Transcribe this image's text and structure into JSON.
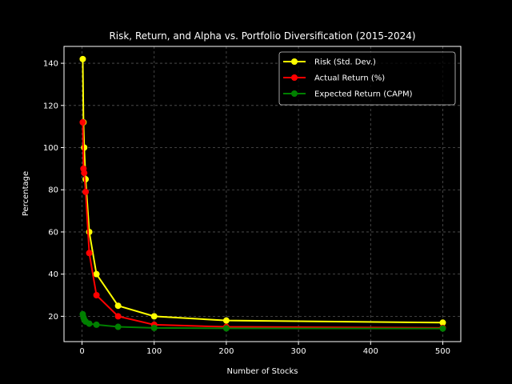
{
  "chart_data": {
    "type": "line",
    "title": "Risk, Return, and Alpha vs. Portfolio Diversification (2015-2024)",
    "xlabel": "Number of Stocks",
    "ylabel": "Percentage",
    "xlim": [
      -25,
      525
    ],
    "ylim": [
      8,
      148
    ],
    "xticks": [
      0,
      100,
      200,
      300,
      400,
      500
    ],
    "yticks": [
      20,
      40,
      60,
      80,
      100,
      120,
      140
    ],
    "grid": true,
    "legend_position": "top-right",
    "x": [
      1,
      2,
      3,
      5,
      10,
      20,
      50,
      100,
      200,
      500
    ],
    "series": [
      {
        "name": "Risk (Std. Dev.)",
        "color": "#ffff00",
        "values": [
          142,
          112,
          100,
          85,
          60,
          40,
          25,
          20,
          18,
          17
        ]
      },
      {
        "name": "Actual Return (%)",
        "color": "#ff0000",
        "values": [
          112,
          90,
          88,
          79,
          50,
          30,
          20,
          16,
          15,
          14.5
        ]
      },
      {
        "name": "Expected Return (CAPM)",
        "color": "#008000",
        "values": [
          21,
          19.5,
          18.5,
          17.5,
          16.5,
          16,
          15,
          14.5,
          14.3,
          14.2
        ]
      }
    ]
  }
}
